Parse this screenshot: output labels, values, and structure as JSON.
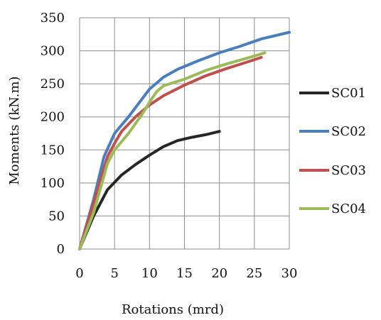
{
  "chart_data": {
    "type": "line",
    "title": "",
    "xlabel": "Rotations (mrd)",
    "ylabel": "Moments (kN.m)",
    "xlim": [
      0,
      30
    ],
    "ylim": [
      0,
      350
    ],
    "x_ticks": [
      0,
      5,
      10,
      15,
      20,
      25,
      30
    ],
    "y_ticks": [
      0,
      50,
      100,
      150,
      200,
      250,
      300,
      350
    ],
    "grid": true,
    "legend_position": "right",
    "series": [
      {
        "name": "SC01",
        "color": "#262626",
        "points": [
          [
            0,
            0
          ],
          [
            2,
            50
          ],
          [
            4,
            90
          ],
          [
            6,
            112
          ],
          [
            8,
            128
          ],
          [
            10,
            142
          ],
          [
            12,
            155
          ],
          [
            14,
            164
          ],
          [
            16,
            169
          ],
          [
            18,
            173
          ],
          [
            20,
            178
          ]
        ]
      },
      {
        "name": "SC02",
        "color": "#4a7ebf",
        "points": [
          [
            0,
            0
          ],
          [
            2,
            75
          ],
          [
            3.5,
            140
          ],
          [
            5,
            175
          ],
          [
            7,
            200
          ],
          [
            9,
            228
          ],
          [
            10,
            242
          ],
          [
            12,
            260
          ],
          [
            14,
            272
          ],
          [
            17,
            285
          ],
          [
            20,
            297
          ],
          [
            23,
            307
          ],
          [
            26,
            318
          ],
          [
            30,
            328
          ]
        ]
      },
      {
        "name": "SC03",
        "color": "#c0504d",
        "points": [
          [
            0,
            0
          ],
          [
            2,
            70
          ],
          [
            4,
            140
          ],
          [
            5,
            160
          ],
          [
            6,
            178
          ],
          [
            8,
            200
          ],
          [
            10,
            218
          ],
          [
            12,
            232
          ],
          [
            15,
            248
          ],
          [
            18,
            262
          ],
          [
            21,
            273
          ],
          [
            24,
            283
          ],
          [
            26,
            290
          ]
        ]
      },
      {
        "name": "SC04",
        "color": "#9bbb59",
        "points": [
          [
            0,
            0
          ],
          [
            2,
            55
          ],
          [
            4,
            130
          ],
          [
            5,
            150
          ],
          [
            7,
            175
          ],
          [
            9,
            205
          ],
          [
            10,
            222
          ],
          [
            11,
            238
          ],
          [
            12,
            247
          ],
          [
            15,
            257
          ],
          [
            18,
            270
          ],
          [
            21,
            280
          ],
          [
            24,
            289
          ],
          [
            26.5,
            297
          ]
        ]
      }
    ]
  }
}
